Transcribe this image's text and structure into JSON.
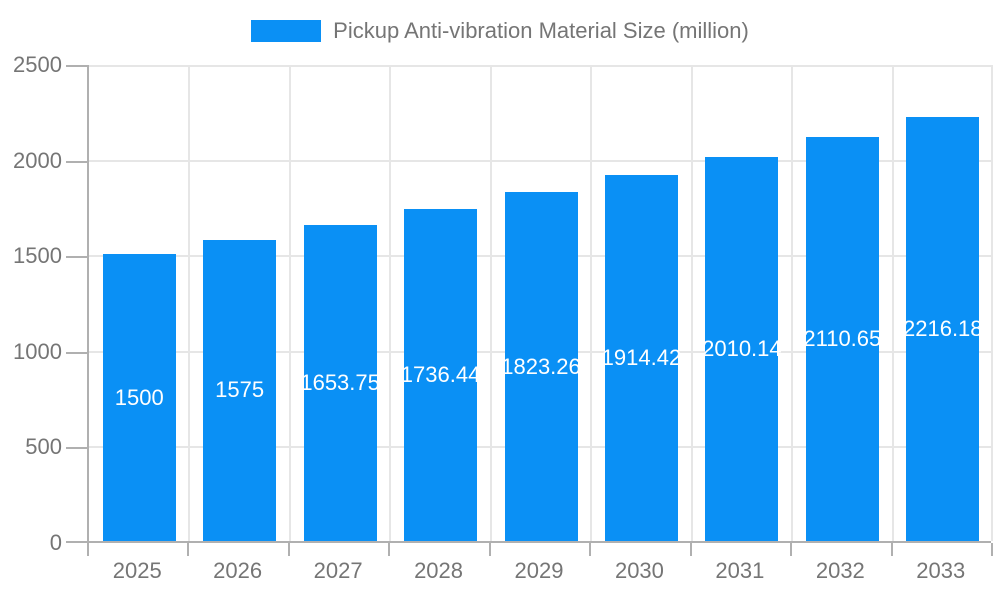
{
  "chart_data": {
    "type": "bar",
    "title": "Pickup Anti-vibration Material Size (million)",
    "categories": [
      "2025",
      "2026",
      "2027",
      "2028",
      "2029",
      "2030",
      "2031",
      "2032",
      "2033"
    ],
    "values": [
      1500,
      1575,
      1653.75,
      1736.44,
      1823.26,
      1914.42,
      2010.14,
      2110.65,
      2216.18
    ],
    "value_labels": [
      "1500",
      "1575",
      "1653.75",
      "1736.44",
      "1823.26",
      "1914.42",
      "2010.14",
      "2110.65",
      "2216.18"
    ],
    "xlabel": "",
    "ylabel": "",
    "ylim": [
      0,
      2500
    ],
    "yticks": [
      0,
      500,
      1000,
      1500,
      2000,
      2500
    ],
    "grid": true,
    "legend_position": "top",
    "value_label_position": "center-inside"
  },
  "colors": {
    "bar": "#0a90f5",
    "axis": "#b0b0b0",
    "grid": "#e6e6e6",
    "text": "#757575",
    "value_text": "#ffffff",
    "background": "#ffffff"
  }
}
